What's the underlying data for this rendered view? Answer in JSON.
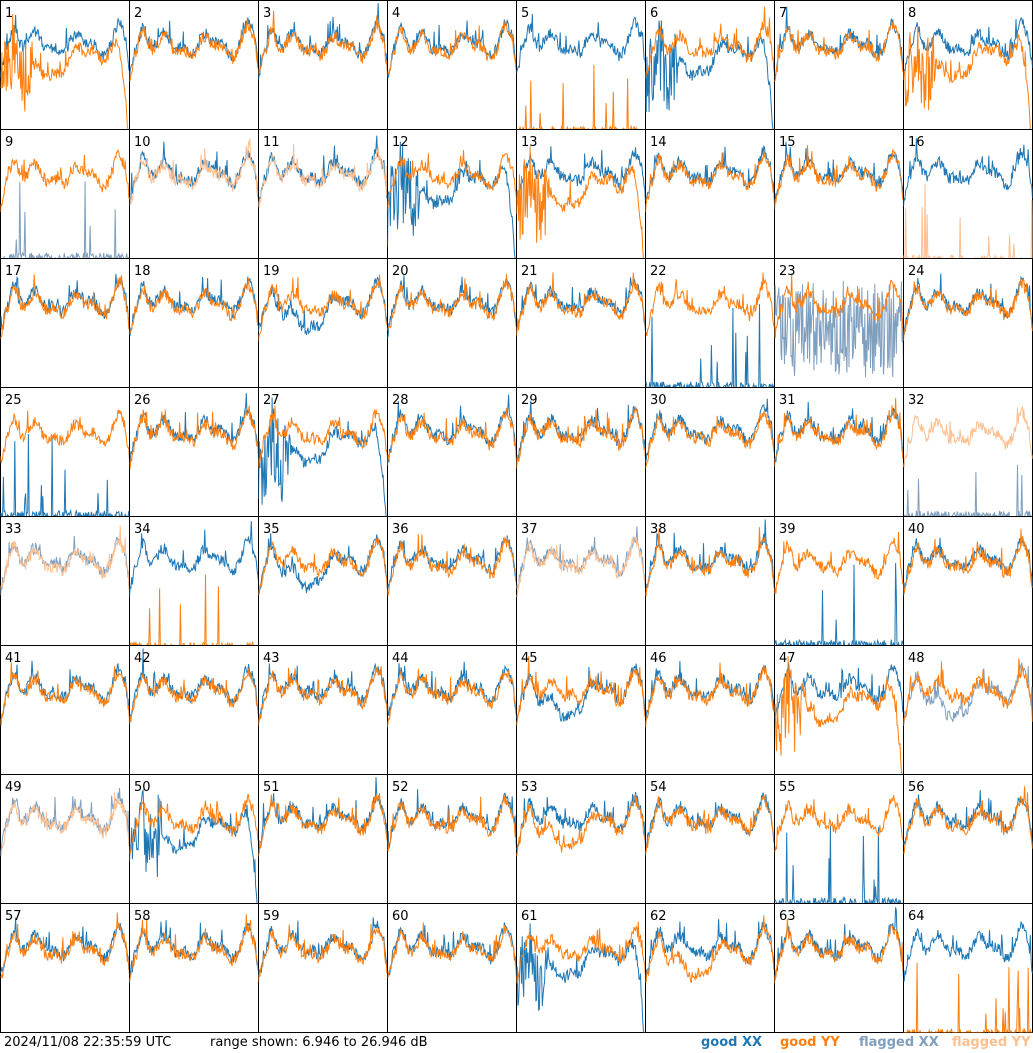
{
  "footer": {
    "timestamp": "2024/11/08 22:35:59 UTC",
    "range_text": "range shown: 6.946 to 26.946 dB"
  },
  "legend": [
    {
      "label": "good XX",
      "color": "#1f77b4"
    },
    {
      "label": "good YY",
      "color": "#ff7f0e"
    },
    {
      "label": "flagged XX",
      "color": "#7f9fbf"
    },
    {
      "label": "flagged YY",
      "color": "#ffbf8f"
    }
  ],
  "chart_data": {
    "type": "line",
    "layout": "small-multiples 8x8",
    "y_range_db": [
      6.946,
      26.946
    ],
    "panels": [
      {
        "id": "1",
        "xx": "good",
        "yy": "good",
        "xx_shape": "normal",
        "yy_shape": "rolloff"
      },
      {
        "id": "2",
        "xx": "good",
        "yy": "good",
        "xx_shape": "normal",
        "yy_shape": "normal"
      },
      {
        "id": "3",
        "xx": "good",
        "yy": "good",
        "xx_shape": "normal",
        "yy_shape": "normal"
      },
      {
        "id": "4",
        "xx": "good",
        "yy": "good",
        "xx_shape": "normal",
        "yy_shape": "normal"
      },
      {
        "id": "5",
        "xx": "good",
        "yy": "good",
        "xx_shape": "normal",
        "yy_shape": "spikes"
      },
      {
        "id": "6",
        "xx": "good",
        "yy": "good",
        "xx_shape": "rolloff",
        "yy_shape": "normal"
      },
      {
        "id": "7",
        "xx": "good",
        "yy": "good",
        "xx_shape": "normal",
        "yy_shape": "normal"
      },
      {
        "id": "8",
        "xx": "good",
        "yy": "good",
        "xx_shape": "normal",
        "yy_shape": "rolloff"
      },
      {
        "id": "9",
        "xx": "flagged",
        "yy": "good",
        "xx_shape": "spikes",
        "yy_shape": "normal"
      },
      {
        "id": "10",
        "xx": "good",
        "yy": "flagged",
        "xx_shape": "normal",
        "yy_shape": "normal"
      },
      {
        "id": "11",
        "xx": "good",
        "yy": "flagged",
        "xx_shape": "normal",
        "yy_shape": "normal"
      },
      {
        "id": "12",
        "xx": "good",
        "yy": "good",
        "xx_shape": "rolloff",
        "yy_shape": "normal"
      },
      {
        "id": "13",
        "xx": "good",
        "yy": "good",
        "xx_shape": "normal",
        "yy_shape": "rolloff"
      },
      {
        "id": "14",
        "xx": "good",
        "yy": "good",
        "xx_shape": "normal",
        "yy_shape": "normal"
      },
      {
        "id": "15",
        "xx": "good",
        "yy": "good",
        "xx_shape": "normal",
        "yy_shape": "normal"
      },
      {
        "id": "16",
        "xx": "good",
        "yy": "flagged",
        "xx_shape": "normal",
        "yy_shape": "spikes"
      },
      {
        "id": "17",
        "xx": "good",
        "yy": "good",
        "xx_shape": "normal",
        "yy_shape": "normal"
      },
      {
        "id": "18",
        "xx": "good",
        "yy": "good",
        "xx_shape": "normal",
        "yy_shape": "normal"
      },
      {
        "id": "19",
        "xx": "good",
        "yy": "good",
        "xx_shape": "dip",
        "yy_shape": "normal"
      },
      {
        "id": "20",
        "xx": "good",
        "yy": "good",
        "xx_shape": "normal",
        "yy_shape": "normal"
      },
      {
        "id": "21",
        "xx": "good",
        "yy": "good",
        "xx_shape": "normal",
        "yy_shape": "normal"
      },
      {
        "id": "22",
        "xx": "good",
        "yy": "good",
        "xx_shape": "spikes",
        "yy_shape": "normal"
      },
      {
        "id": "23",
        "xx": "flagged",
        "yy": "good",
        "xx_shape": "noise",
        "yy_shape": "normal"
      },
      {
        "id": "24",
        "xx": "good",
        "yy": "good",
        "xx_shape": "normal",
        "yy_shape": "normal"
      },
      {
        "id": "25",
        "xx": "good",
        "yy": "good",
        "xx_shape": "spikes",
        "yy_shape": "normal"
      },
      {
        "id": "26",
        "xx": "good",
        "yy": "good",
        "xx_shape": "normal",
        "yy_shape": "normal"
      },
      {
        "id": "27",
        "xx": "good",
        "yy": "good",
        "xx_shape": "rolloff",
        "yy_shape": "normal"
      },
      {
        "id": "28",
        "xx": "good",
        "yy": "good",
        "xx_shape": "normal",
        "yy_shape": "normal"
      },
      {
        "id": "29",
        "xx": "good",
        "yy": "good",
        "xx_shape": "normal",
        "yy_shape": "normal"
      },
      {
        "id": "30",
        "xx": "good",
        "yy": "good",
        "xx_shape": "normal",
        "yy_shape": "normal"
      },
      {
        "id": "31",
        "xx": "good",
        "yy": "good",
        "xx_shape": "normal",
        "yy_shape": "normal"
      },
      {
        "id": "32",
        "xx": "flagged",
        "yy": "flagged",
        "xx_shape": "spikes",
        "yy_shape": "normal"
      },
      {
        "id": "33",
        "xx": "flagged",
        "yy": "flagged",
        "xx_shape": "normal",
        "yy_shape": "normal"
      },
      {
        "id": "34",
        "xx": "good",
        "yy": "good",
        "xx_shape": "normal",
        "yy_shape": "spikes"
      },
      {
        "id": "35",
        "xx": "good",
        "yy": "good",
        "xx_shape": "dip",
        "yy_shape": "normal"
      },
      {
        "id": "36",
        "xx": "good",
        "yy": "good",
        "xx_shape": "normal",
        "yy_shape": "normal"
      },
      {
        "id": "37",
        "xx": "flagged",
        "yy": "flagged",
        "xx_shape": "normal",
        "yy_shape": "normal"
      },
      {
        "id": "38",
        "xx": "good",
        "yy": "good",
        "xx_shape": "normal",
        "yy_shape": "normal"
      },
      {
        "id": "39",
        "xx": "good",
        "yy": "good",
        "xx_shape": "spikes",
        "yy_shape": "normal"
      },
      {
        "id": "40",
        "xx": "good",
        "yy": "good",
        "xx_shape": "normal",
        "yy_shape": "normal"
      },
      {
        "id": "41",
        "xx": "good",
        "yy": "good",
        "xx_shape": "normal",
        "yy_shape": "normal"
      },
      {
        "id": "42",
        "xx": "good",
        "yy": "good",
        "xx_shape": "normal",
        "yy_shape": "normal"
      },
      {
        "id": "43",
        "xx": "good",
        "yy": "good",
        "xx_shape": "normal",
        "yy_shape": "normal"
      },
      {
        "id": "44",
        "xx": "good",
        "yy": "good",
        "xx_shape": "normal",
        "yy_shape": "normal"
      },
      {
        "id": "45",
        "xx": "good",
        "yy": "good",
        "xx_shape": "dip",
        "yy_shape": "normal"
      },
      {
        "id": "46",
        "xx": "good",
        "yy": "good",
        "xx_shape": "normal",
        "yy_shape": "normal"
      },
      {
        "id": "47",
        "xx": "good",
        "yy": "good",
        "xx_shape": "normal",
        "yy_shape": "rolloff"
      },
      {
        "id": "48",
        "xx": "flagged",
        "yy": "good",
        "xx_shape": "dip",
        "yy_shape": "normal"
      },
      {
        "id": "49",
        "xx": "flagged",
        "yy": "flagged",
        "xx_shape": "normal",
        "yy_shape": "normal"
      },
      {
        "id": "50",
        "xx": "good",
        "yy": "good",
        "xx_shape": "rolloff",
        "yy_shape": "normal"
      },
      {
        "id": "51",
        "xx": "good",
        "yy": "good",
        "xx_shape": "normal",
        "yy_shape": "normal"
      },
      {
        "id": "52",
        "xx": "good",
        "yy": "good",
        "xx_shape": "normal",
        "yy_shape": "normal"
      },
      {
        "id": "53",
        "xx": "good",
        "yy": "good",
        "xx_shape": "normal",
        "yy_shape": "dip"
      },
      {
        "id": "54",
        "xx": "good",
        "yy": "good",
        "xx_shape": "normal",
        "yy_shape": "normal"
      },
      {
        "id": "55",
        "xx": "good",
        "yy": "good",
        "xx_shape": "spikes",
        "yy_shape": "normal"
      },
      {
        "id": "56",
        "xx": "good",
        "yy": "good",
        "xx_shape": "normal",
        "yy_shape": "normal"
      },
      {
        "id": "57",
        "xx": "good",
        "yy": "good",
        "xx_shape": "normal",
        "yy_shape": "normal"
      },
      {
        "id": "58",
        "xx": "good",
        "yy": "good",
        "xx_shape": "normal",
        "yy_shape": "normal"
      },
      {
        "id": "59",
        "xx": "good",
        "yy": "good",
        "xx_shape": "normal",
        "yy_shape": "normal"
      },
      {
        "id": "60",
        "xx": "good",
        "yy": "good",
        "xx_shape": "normal",
        "yy_shape": "normal"
      },
      {
        "id": "61",
        "xx": "good",
        "yy": "good",
        "xx_shape": "rolloff",
        "yy_shape": "normal"
      },
      {
        "id": "62",
        "xx": "good",
        "yy": "good",
        "xx_shape": "normal",
        "yy_shape": "dip"
      },
      {
        "id": "63",
        "xx": "good",
        "yy": "good",
        "xx_shape": "normal",
        "yy_shape": "normal"
      },
      {
        "id": "64",
        "xx": "good",
        "yy": "good",
        "xx_shape": "normal",
        "yy_shape": "spikes"
      }
    ]
  }
}
